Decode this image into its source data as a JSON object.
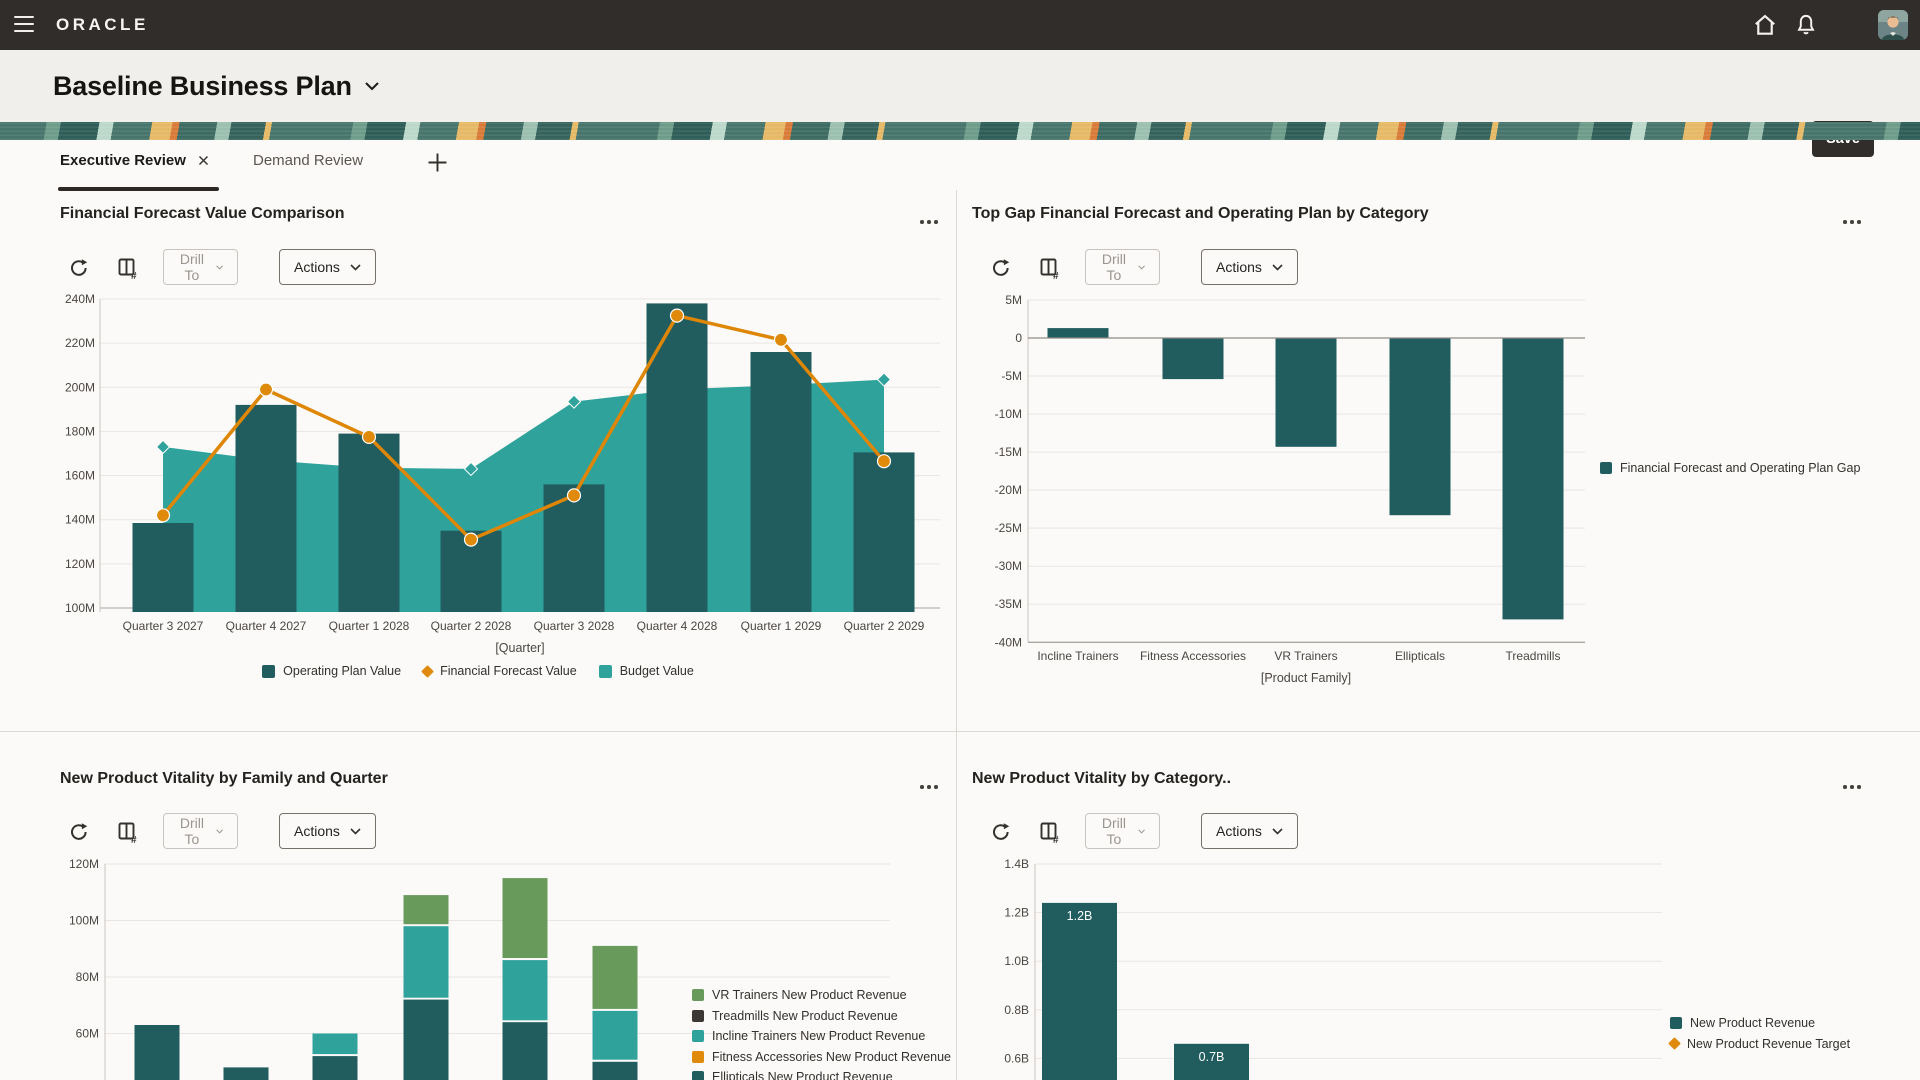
{
  "header": {
    "logo": "ORACLE"
  },
  "page": {
    "title": "Baseline Business Plan",
    "save": "Save"
  },
  "tabs": {
    "items": [
      {
        "label": "Executive Review",
        "active": true
      },
      {
        "label": "Demand Review",
        "active": false
      }
    ]
  },
  "toolbar": {
    "drill_to": "Drill To",
    "actions": "Actions"
  },
  "chart_data": [
    {
      "type": "combo",
      "title": "Financial Forecast Value Comparison",
      "xlabel": "[Quarter]",
      "unit": "M",
      "ylim": [
        100,
        240
      ],
      "yticks": [
        "240M",
        "220M",
        "200M",
        "180M",
        "160M",
        "140M",
        "120M",
        "100M"
      ],
      "categories": [
        "Quarter 3 2027",
        "Quarter 4 2027",
        "Quarter 1 2028",
        "Quarter 2 2028",
        "Quarter 3 2028",
        "Quarter 4 2028",
        "Quarter 1 2029",
        "Quarter 2 2029"
      ],
      "series": [
        {
          "name": "Operating Plan Value",
          "kind": "bar",
          "color": "#215C5F",
          "values": [
            138.5,
            192,
            179,
            135,
            156,
            238,
            216,
            170.5
          ]
        },
        {
          "name": "Financial Forecast Value",
          "kind": "line",
          "color": "#DE8606",
          "values": [
            142,
            199,
            177.5,
            131,
            151,
            232.5,
            221.5,
            166.5
          ]
        },
        {
          "name": "Budget Value",
          "kind": "area",
          "color": "#2FA29B",
          "values": [
            173,
            167,
            163.5,
            163,
            193.5,
            199,
            201,
            203.5
          ],
          "marker_visible_at": [
            0,
            3,
            4,
            7
          ]
        }
      ]
    },
    {
      "type": "bar",
      "title": "Top Gap Financial Forecast and Operating Plan by Category",
      "xlabel": "[Product Family]",
      "unit": "M",
      "ylim": [
        -40,
        5
      ],
      "yticks": [
        "5M",
        "0",
        "-5M",
        "-10M",
        "-15M",
        "-20M",
        "-25M",
        "-30M",
        "-35M",
        "-40M"
      ],
      "categories": [
        "Incline Trainers",
        "Fitness Accessories",
        "VR Trainers",
        "Ellipticals",
        "Treadmills"
      ],
      "series": [
        {
          "name": "Financial Forecast and Operating Plan Gap",
          "color": "#215C5F",
          "values": [
            1.3,
            -5.4,
            -14.3,
            -23.3,
            -37
          ]
        }
      ]
    },
    {
      "type": "stacked-bar",
      "title": "New Product Vitality by Family and Quarter",
      "unit": "M",
      "yticks": [
        "120M",
        "100M",
        "80M",
        "60M"
      ],
      "ylim_visible": [
        60,
        120
      ],
      "note": "chart cropped at viewport bottom; x-axis labels not visible",
      "stacks": [
        {
          "ellipticals_top": 63,
          "incline_top": null,
          "vr_top": null
        },
        {
          "ellipticals_top": 48,
          "incline_top": null,
          "vr_top": null
        },
        {
          "ellipticals_top": 52,
          "incline_top": 60,
          "vr_top": null
        },
        {
          "ellipticals_top": 72,
          "incline_top": 98,
          "vr_top": 109
        },
        {
          "ellipticals_top": 64,
          "incline_top": 86,
          "vr_top": 115
        },
        {
          "ellipticals_top": 50,
          "incline_top": 68,
          "vr_top": 91
        }
      ],
      "colors": {
        "vr": "#689A5C",
        "incline": "#2FA29B",
        "ellipticals": "#215C5F"
      },
      "legend": [
        {
          "label": "VR Trainers New Product Revenue",
          "color": "#689A5C",
          "marker": "square"
        },
        {
          "label": "Treadmills New Product Revenue",
          "color": "#3B3735",
          "marker": "square"
        },
        {
          "label": "Incline Trainers New Product Revenue",
          "color": "#2FA29B",
          "marker": "square"
        },
        {
          "label": "Fitness Accessories New Product Revenue",
          "color": "#E08A0B",
          "marker": "square"
        },
        {
          "label": "Ellipticals New Product Revenue",
          "color": "#215C5F",
          "marker": "square"
        }
      ]
    },
    {
      "type": "bar",
      "title": "New Product Vitality by Category..",
      "unit": "B",
      "yticks": [
        "1.4B",
        "1.2B",
        "1.0B",
        "0.8B",
        "0.6B"
      ],
      "color": "#215C5F",
      "bars": [
        {
          "value": 1.24,
          "label": "1.2B"
        },
        {
          "value": 0.66,
          "label": "0.7B"
        }
      ],
      "legend": [
        {
          "label": "New Product Revenue",
          "color": "#215C5F",
          "marker": "square"
        },
        {
          "label": "New Product Revenue Target",
          "color": "#E08A0B",
          "marker": "diamond"
        }
      ]
    }
  ]
}
